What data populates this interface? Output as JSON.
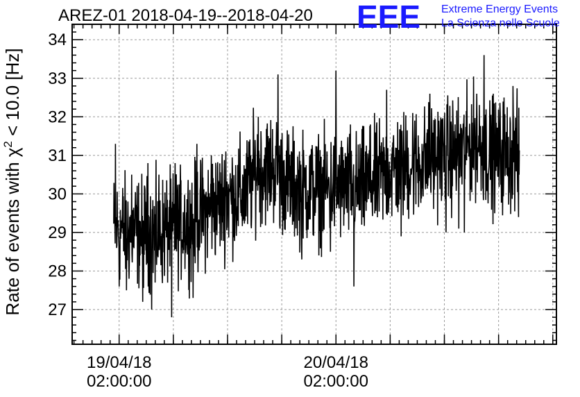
{
  "chart_data": {
    "type": "line",
    "title": "AREZ-01 2018-04-19--2018-04-20",
    "ylabel": {
      "prefix": "Rate of events with ",
      "symbol": "χ",
      "superscript": "2",
      "suffix": " < 10.0 [Hz]"
    },
    "ylim": [
      26.1,
      34.4
    ],
    "y_ticks": [
      27,
      28,
      29,
      30,
      31,
      32,
      33,
      34
    ],
    "x_tick_labels": [
      {
        "date": "19/04/18",
        "time": "02:00:00"
      },
      {
        "date": "20/04/18",
        "time": "02:00:00"
      }
    ],
    "xlim_hours_from_0000_19apr": [
      -3.2,
      50.4
    ],
    "x_labeled_ticks_hours": [
      2,
      26
    ],
    "x_major_tick_hours": [
      2,
      8,
      14,
      20,
      26,
      32,
      38,
      44,
      50
    ],
    "grid": true,
    "series": [
      {
        "color": "#000000",
        "x_range_hours": [
          1.4,
          46.3
        ],
        "trend": [
          [
            1.4,
            29.1
          ],
          [
            4.0,
            29.0
          ],
          [
            6.0,
            29.0
          ],
          [
            8.0,
            29.1
          ],
          [
            10.0,
            29.3
          ],
          [
            12.0,
            29.6
          ],
          [
            14.0,
            29.9
          ],
          [
            16.0,
            30.0
          ],
          [
            17.0,
            30.6
          ],
          [
            19.0,
            30.7
          ],
          [
            21.0,
            30.2
          ],
          [
            24.0,
            30.1
          ],
          [
            26.0,
            30.2
          ],
          [
            28.0,
            30.1
          ],
          [
            30.0,
            30.3
          ],
          [
            32.0,
            30.6
          ],
          [
            35.0,
            30.8
          ],
          [
            38.0,
            31.0
          ],
          [
            40.0,
            31.1
          ],
          [
            41.5,
            31.4
          ],
          [
            43.0,
            31.0
          ],
          [
            46.3,
            31.0
          ]
        ],
        "noise_amplitude": 0.7,
        "spikes": [
          [
            1.6,
            31.3
          ],
          [
            2.0,
            27.6
          ],
          [
            2.8,
            27.5
          ],
          [
            3.4,
            30.5
          ],
          [
            4.6,
            27.2
          ],
          [
            5.6,
            27.0
          ],
          [
            5.2,
            30.8
          ],
          [
            6.0,
            27.7
          ],
          [
            6.4,
            30.5
          ],
          [
            7.8,
            26.8
          ],
          [
            8.2,
            30.8
          ],
          [
            10.2,
            27.3
          ],
          [
            10.6,
            31.3
          ],
          [
            12.2,
            31.0
          ],
          [
            13.8,
            31.1
          ],
          [
            16.6,
            29.2
          ],
          [
            17.4,
            32.0
          ],
          [
            19.6,
            33.1
          ],
          [
            19.8,
            29.1
          ],
          [
            22.2,
            28.3
          ],
          [
            25.4,
            28.5
          ],
          [
            26.0,
            33.2
          ],
          [
            27.6,
            31.8
          ],
          [
            28.0,
            27.6
          ],
          [
            29.8,
            31.8
          ],
          [
            31.6,
            32.7
          ],
          [
            33.2,
            28.9
          ],
          [
            34.5,
            32.1
          ],
          [
            36.4,
            32.6
          ],
          [
            37.4,
            31.9
          ],
          [
            38.2,
            29.0
          ],
          [
            39.6,
            29.1
          ],
          [
            40.2,
            29.0
          ],
          [
            41.6,
            32.6
          ],
          [
            42.4,
            33.6
          ],
          [
            43.4,
            32.6
          ],
          [
            44.6,
            32.5
          ],
          [
            45.6,
            32.8
          ],
          [
            46.2,
            29.4
          ]
        ]
      }
    ]
  },
  "logo": {
    "mark": "EEE",
    "line1": "Extreme Energy Events",
    "line2": "La Scienza nelle Scuole"
  }
}
